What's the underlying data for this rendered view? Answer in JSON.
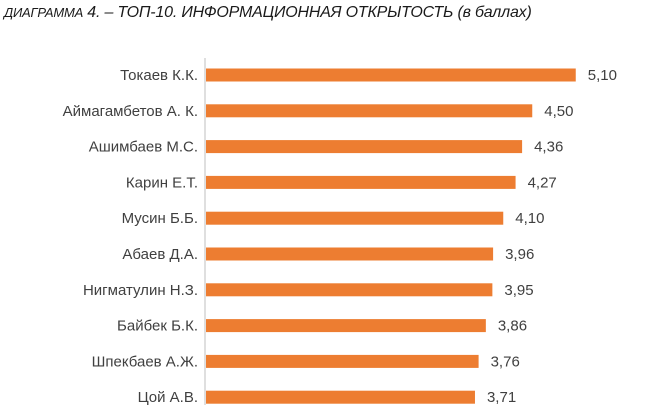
{
  "chart_data": {
    "type": "bar",
    "orientation": "horizontal",
    "title_lead": "ДИАГРАММА",
    "title_rest": " 4. – ТОП-10. ИНФОРМАЦИОННАЯ ОТКРЫТОСТЬ (в баллах)",
    "categories": [
      "Токаев К.К.",
      "Аймагамбетов А. К.",
      "Ашимбаев М.С.",
      "Карин Е.Т.",
      "Мусин Б.Б.",
      "Абаев Д.А.",
      "Нигматулин Н.З.",
      "Байбек Б.К.",
      "Шпекбаев А.Ж.",
      "Цой А.В."
    ],
    "values": [
      5.1,
      4.5,
      4.36,
      4.27,
      4.1,
      3.96,
      3.95,
      3.86,
      3.76,
      3.71
    ],
    "value_labels": [
      "5,10",
      "4,50",
      "4,36",
      "4,27",
      "4,10",
      "3,96",
      "3,95",
      "3,86",
      "3,76",
      "3,71"
    ],
    "bar_color": "#ED7D31",
    "axis_color": "#BFBFBF",
    "grid": false,
    "legend": "none"
  }
}
